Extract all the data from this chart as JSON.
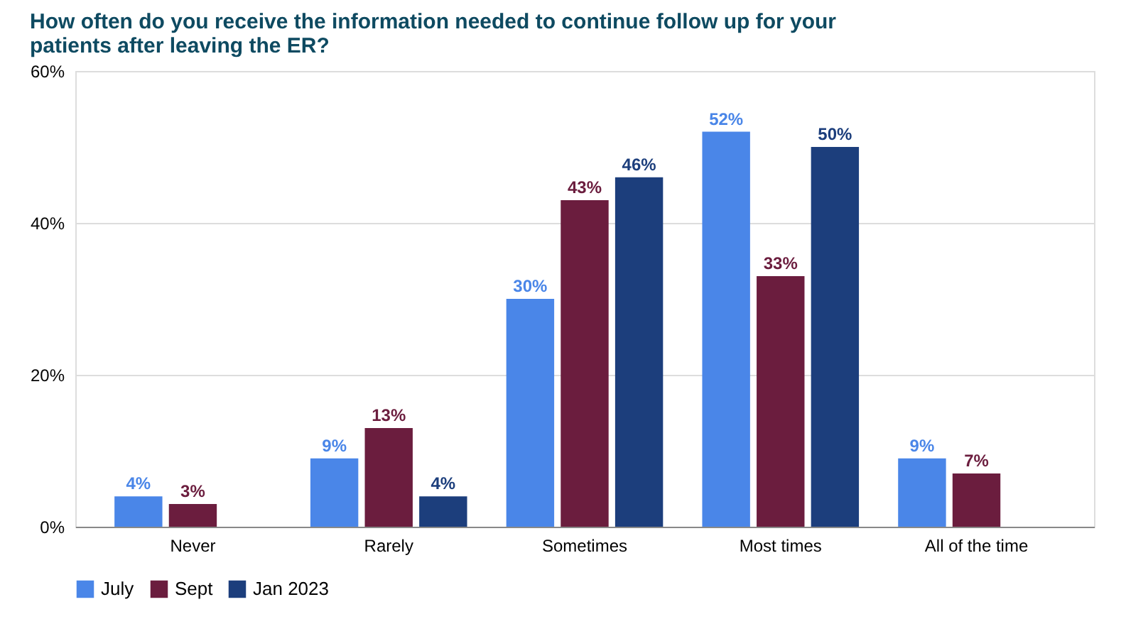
{
  "chart_data": {
    "type": "bar",
    "title": "How often do you receive the information needed to continue follow up for your patients after leaving the ER?",
    "categories": [
      "Never",
      "Rarely",
      "Sometimes",
      "Most times",
      "All of the time"
    ],
    "series": [
      {
        "name": "July",
        "color": "#4a86e8",
        "values": [
          4,
          9,
          30,
          52,
          9
        ],
        "value_labels": [
          "4%",
          "9%",
          "30%",
          "52%",
          "9%"
        ]
      },
      {
        "name": "Sept",
        "color": "#6b1d3e",
        "values": [
          3,
          13,
          43,
          33,
          7
        ],
        "value_labels": [
          "3%",
          "13%",
          "43%",
          "33%",
          "7%"
        ]
      },
      {
        "name": "Jan 2023",
        "color": "#1c3e7c",
        "values": [
          null,
          4,
          46,
          50,
          null
        ],
        "value_labels": [
          null,
          "4%",
          "46%",
          "50%",
          null
        ]
      }
    ],
    "ylim": [
      0,
      60
    ],
    "yticks": [
      {
        "value": 0,
        "label": "0%"
      },
      {
        "value": 20,
        "label": "20%"
      },
      {
        "value": 40,
        "label": "40%"
      },
      {
        "value": 60,
        "label": "60%"
      }
    ],
    "grid": "y",
    "legend": "bottom"
  }
}
